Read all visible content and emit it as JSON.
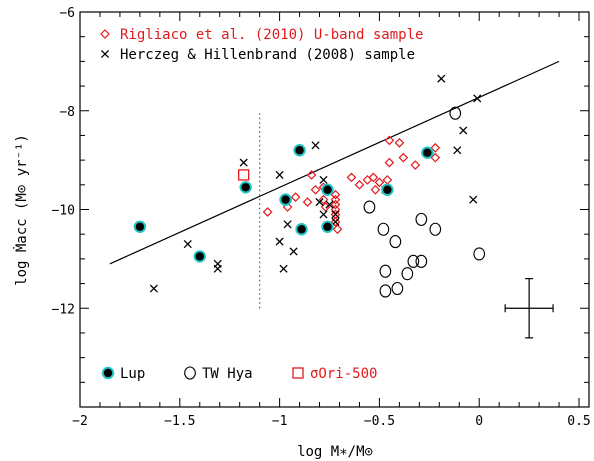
{
  "chart_data": {
    "type": "scatter",
    "xlabel": "log M∗/M⊙",
    "ylabel": "log Ṁacc (M⊙ yr⁻¹)",
    "xlim": [
      -2.0,
      0.55
    ],
    "ylim": [
      -14.0,
      -6.0
    ],
    "x_ticks": [
      "−2",
      "−1.5",
      "−1",
      "−0.5",
      "0",
      "0.5"
    ],
    "x_tick_values": [
      -2,
      -1.5,
      -1,
      -0.5,
      0,
      0.5
    ],
    "y_ticks": [
      "−6",
      "−8",
      "−10",
      "−12"
    ],
    "y_tick_values": [
      -6,
      -8,
      -10,
      -12
    ],
    "grid": false,
    "legend_top": [
      {
        "label": "Rigliaco et al. (2010) U-band sample",
        "marker": "diamond",
        "color": "#e31a1c"
      },
      {
        "label": "Herczeg & Hillenbrand (2008) sample",
        "marker": "cross",
        "color": "#000000"
      }
    ],
    "legend_bottom": [
      {
        "label": "Lup",
        "marker": "filled-circle-cyan"
      },
      {
        "label": "TW Hya",
        "marker": "open-circle"
      },
      {
        "label": "σOri-500",
        "marker": "open-square-red"
      }
    ],
    "fit_line": {
      "x": [
        -1.85,
        0.4
      ],
      "y": [
        -11.1,
        -7.0
      ]
    },
    "mass_limit_line": {
      "x": -1.1,
      "y": [
        -12.0,
        -8.05
      ]
    },
    "error_bar": {
      "x": 0.25,
      "y": -12.0,
      "xerr": 0.12,
      "yerr": 0.6
    },
    "series": [
      {
        "name": "Rigliaco et al. (2010) U-band sample",
        "marker": "diamond",
        "color": "#e31a1c",
        "x": [
          -1.06,
          -0.96,
          -0.92,
          -0.86,
          -0.84,
          -0.82,
          -0.78,
          -0.78,
          -0.77,
          -0.72,
          -0.72,
          -0.72,
          -0.72,
          -0.72,
          -0.72,
          -0.71,
          -0.64,
          -0.6,
          -0.56,
          -0.53,
          -0.52,
          -0.5,
          -0.46,
          -0.45,
          -0.45,
          -0.4,
          -0.38,
          -0.32,
          -0.25,
          -0.22,
          -0.22
        ],
        "y": [
          -10.05,
          -9.95,
          -9.75,
          -9.85,
          -9.3,
          -9.6,
          -9.55,
          -9.8,
          -9.95,
          -9.7,
          -9.8,
          -9.9,
          -10.0,
          -10.1,
          -10.25,
          -10.4,
          -9.35,
          -9.5,
          -9.4,
          -9.35,
          -9.6,
          -9.45,
          -9.4,
          -8.6,
          -9.05,
          -8.65,
          -8.95,
          -9.1,
          -8.85,
          -8.75,
          -8.95
        ]
      },
      {
        "name": "Herczeg & Hillenbrand (2008) sample",
        "marker": "cross",
        "color": "#000000",
        "x": [
          -1.63,
          -1.46,
          -1.31,
          -1.31,
          -1.18,
          -1.0,
          -1.0,
          -0.98,
          -0.96,
          -0.93,
          -0.82,
          -0.8,
          -0.78,
          -0.78,
          -0.75,
          -0.72,
          -0.72,
          -0.47,
          -0.19,
          -0.11,
          -0.08,
          -0.03,
          -0.01
        ],
        "y": [
          -11.6,
          -10.7,
          -11.1,
          -11.2,
          -9.05,
          -9.3,
          -10.65,
          -11.2,
          -10.3,
          -10.85,
          -8.7,
          -9.85,
          -9.4,
          -10.1,
          -9.9,
          -10.1,
          -10.25,
          -9.6,
          -7.35,
          -8.8,
          -8.4,
          -9.8,
          -7.75
        ]
      },
      {
        "name": "Lup",
        "marker": "filled-circle-cyan",
        "x": [
          -1.7,
          -1.4,
          -1.17,
          -0.97,
          -0.97,
          -0.9,
          -0.89,
          -0.76,
          -0.76,
          -0.46,
          -0.26
        ],
        "y": [
          -10.35,
          -10.95,
          -9.55,
          -9.8,
          -9.8,
          -8.8,
          -10.4,
          -9.6,
          -10.35,
          -9.6,
          -8.85
        ]
      },
      {
        "name": "TW Hya",
        "marker": "open-circle",
        "x": [
          -0.55,
          -0.48,
          -0.47,
          -0.47,
          -0.42,
          -0.41,
          -0.36,
          -0.33,
          -0.29,
          -0.29,
          -0.22,
          -0.12,
          0.0
        ],
        "y": [
          -9.95,
          -10.4,
          -11.25,
          -11.65,
          -10.65,
          -11.6,
          -11.3,
          -11.05,
          -10.2,
          -11.05,
          -10.4,
          -8.05,
          -10.9
        ]
      },
      {
        "name": "σOri-500",
        "marker": "open-square-red",
        "x": [
          -1.18
        ],
        "y": [
          -9.3
        ]
      }
    ]
  }
}
